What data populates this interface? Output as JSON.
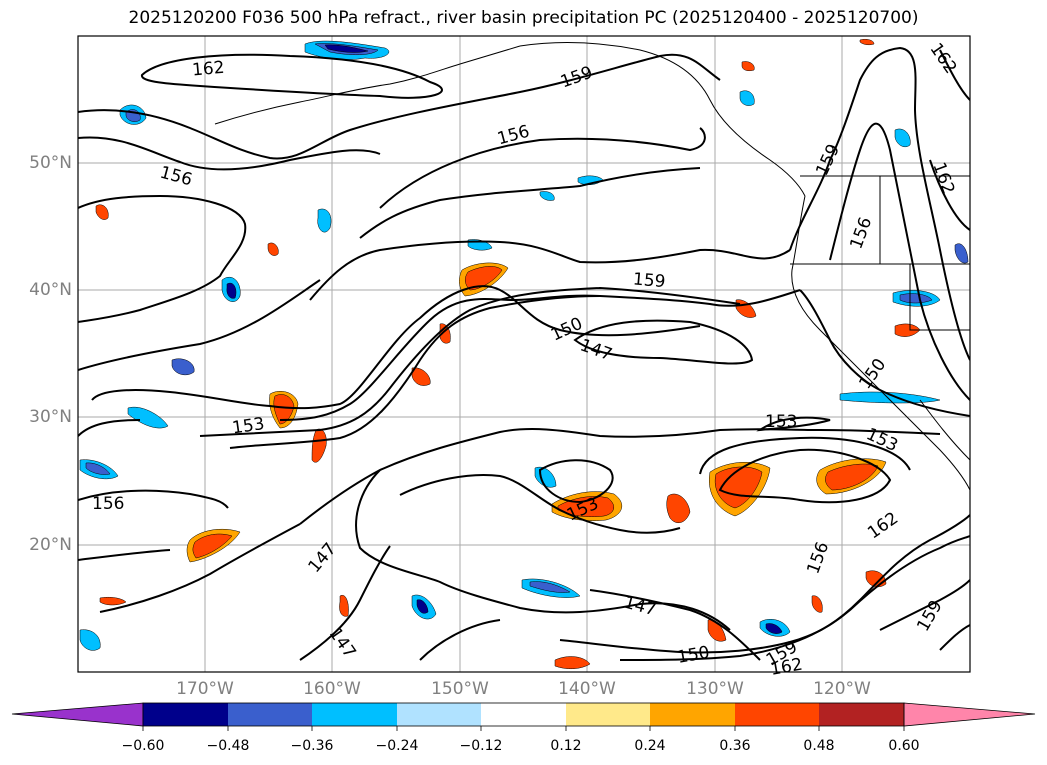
{
  "title": "2025120200 F036 500 hPa refract., river basin precipitation PC (2025120400 - 2025120700)",
  "map": {
    "lat_labels": [
      "50°N",
      "40°N",
      "30°N",
      "20°N"
    ],
    "lon_labels": [
      "170°W",
      "160°W",
      "150°W",
      "140°W",
      "130°W",
      "120°W"
    ],
    "contour_labels": [
      "162",
      "159",
      "156",
      "156",
      "162",
      "159",
      "162",
      "156",
      "159",
      "150",
      "147",
      "150",
      "153",
      "153",
      "156",
      "153",
      "153",
      "162",
      "156",
      "147",
      "147",
      "147",
      "150",
      "159",
      "159",
      "162"
    ],
    "colors": {
      "grid": "#aaaaaa",
      "contour": "#000000",
      "coast": "#000000",
      "lat_lon_label": "#808080"
    }
  },
  "colorbar": {
    "ticks": [
      "−0.60",
      "−0.48",
      "−0.36",
      "−0.24",
      "−0.12",
      "0.12",
      "0.24",
      "0.36",
      "0.48",
      "0.60"
    ],
    "colors": [
      "#9932cc",
      "#00008b",
      "#3a5fcd",
      "#00bfff",
      "#b0e2ff",
      "#ffffff",
      "#ffe98a",
      "#ffa500",
      "#ff4500",
      "#b22222",
      "#ff85aa"
    ]
  }
}
